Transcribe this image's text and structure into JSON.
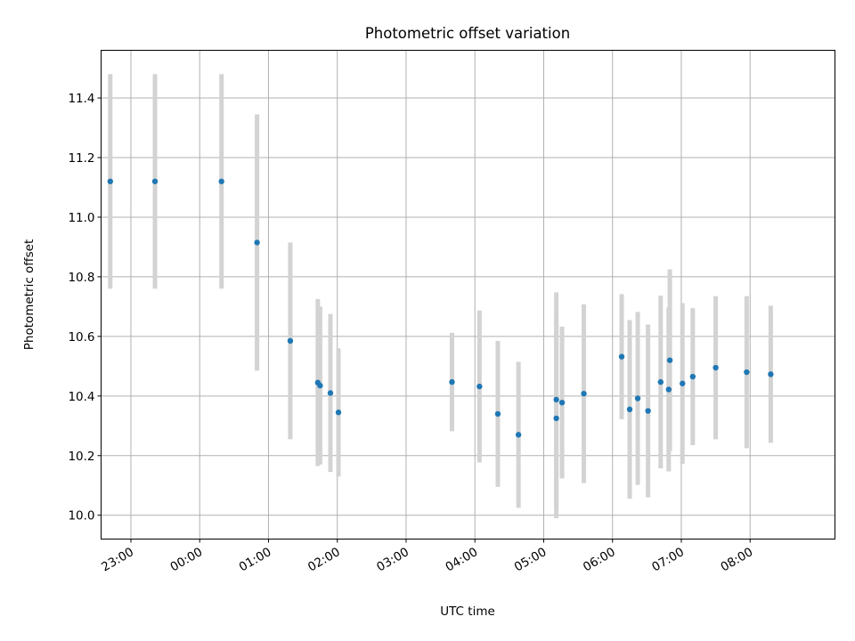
{
  "chart_data": {
    "type": "scatter",
    "title": "Photometric offset variation",
    "xlabel": "UTC time",
    "ylabel": "Photometric offset",
    "xlim": [
      "22:34",
      "09:14"
    ],
    "ylim": [
      9.92,
      11.56
    ],
    "grid": true,
    "x_ticks": [
      "23:00",
      "00:00",
      "01:00",
      "02:00",
      "03:00",
      "04:00",
      "05:00",
      "06:00",
      "07:00",
      "08:00"
    ],
    "y_ticks": [
      "10.0",
      "10.2",
      "10.4",
      "10.6",
      "10.8",
      "11.0",
      "11.2",
      "11.4"
    ],
    "colors": {
      "point": "#1f77b4",
      "errorbar": "#d3d3d3"
    },
    "series": [
      {
        "points": [
          {
            "x": "22:42",
            "y": 11.12,
            "err": 0.36
          },
          {
            "x": "23:21",
            "y": 11.12,
            "err": 0.36
          },
          {
            "x": "00:19",
            "y": 11.12,
            "err": 0.36
          },
          {
            "x": "00:50",
            "y": 10.915,
            "err": 0.43
          },
          {
            "x": "01:19",
            "y": 10.585,
            "err": 0.33
          },
          {
            "x": "01:43",
            "y": 10.445,
            "err": 0.28
          },
          {
            "x": "01:45",
            "y": 10.435,
            "err": 0.265
          },
          {
            "x": "01:54",
            "y": 10.41,
            "err": 0.265
          },
          {
            "x": "02:01",
            "y": 10.345,
            "err": 0.215
          },
          {
            "x": "03:40",
            "y": 10.447,
            "err": 0.165
          },
          {
            "x": "04:04",
            "y": 10.432,
            "err": 0.255
          },
          {
            "x": "04:20",
            "y": 10.34,
            "err": 0.245
          },
          {
            "x": "04:38",
            "y": 10.27,
            "err": 0.245
          },
          {
            "x": "05:11",
            "y": 10.388,
            "err": 0.36
          },
          {
            "x": "05:11",
            "y": 10.325,
            "err": 0.335
          },
          {
            "x": "05:16",
            "y": 10.378,
            "err": 0.255
          },
          {
            "x": "05:35",
            "y": 10.408,
            "err": 0.3
          },
          {
            "x": "06:08",
            "y": 10.532,
            "err": 0.21
          },
          {
            "x": "06:15",
            "y": 10.355,
            "err": 0.3
          },
          {
            "x": "06:22",
            "y": 10.392,
            "err": 0.29
          },
          {
            "x": "06:31",
            "y": 10.35,
            "err": 0.29
          },
          {
            "x": "06:42",
            "y": 10.447,
            "err": 0.29
          },
          {
            "x": "06:49",
            "y": 10.422,
            "err": 0.275
          },
          {
            "x": "06:50",
            "y": 10.52,
            "err": 0.305
          },
          {
            "x": "07:01",
            "y": 10.442,
            "err": 0.27
          },
          {
            "x": "07:10",
            "y": 10.465,
            "err": 0.23
          },
          {
            "x": "07:30",
            "y": 10.495,
            "err": 0.24
          },
          {
            "x": "07:57",
            "y": 10.48,
            "err": 0.255
          },
          {
            "x": "08:18",
            "y": 10.473,
            "err": 0.23
          }
        ]
      }
    ]
  }
}
